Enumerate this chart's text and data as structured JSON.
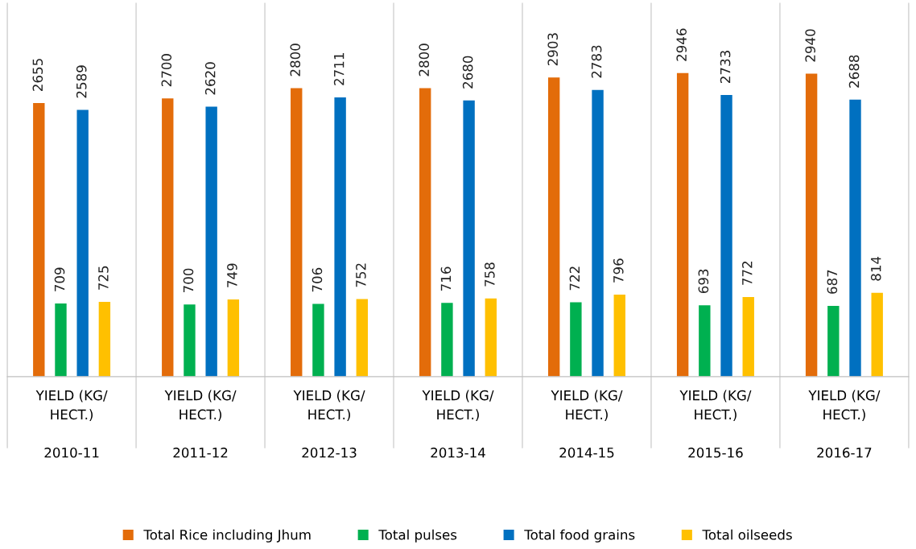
{
  "chart_data": {
    "type": "bar",
    "categories": [
      "YIELD (KG/\nHECT.)\n\n2010-11",
      "YIELD (KG/\nHECT.)\n\n2011-12",
      "YIELD (KG/\nHECT.)\n\n2012-13",
      "YIELD (KG/\nHECT.)\n\n2013-14",
      "YIELD (KG/\nHECT.)\n\n2014-15",
      "YIELD (KG/\nHECT.)\n\n2015-16",
      "YIELD (KG/\nHECT.)\n\n2016-17"
    ],
    "series": [
      {
        "name": "Total Rice including Jhum",
        "color": "#e36c0a",
        "values": [
          2655,
          2700,
          2800,
          2800,
          2903,
          2946,
          2940
        ]
      },
      {
        "name": "Total pulses",
        "color": "#00b050",
        "values": [
          709,
          700,
          706,
          716,
          722,
          693,
          687
        ]
      },
      {
        "name": "Total food grains",
        "color": "#0070c0",
        "values": [
          2589,
          2620,
          2711,
          2680,
          2783,
          2733,
          2688
        ]
      },
      {
        "name": "Total oilseeds",
        "color": "#ffc000",
        "values": [
          725,
          749,
          752,
          758,
          796,
          772,
          814
        ]
      }
    ],
    "data_labels": true,
    "legend": "bottom",
    "grid": false
  }
}
